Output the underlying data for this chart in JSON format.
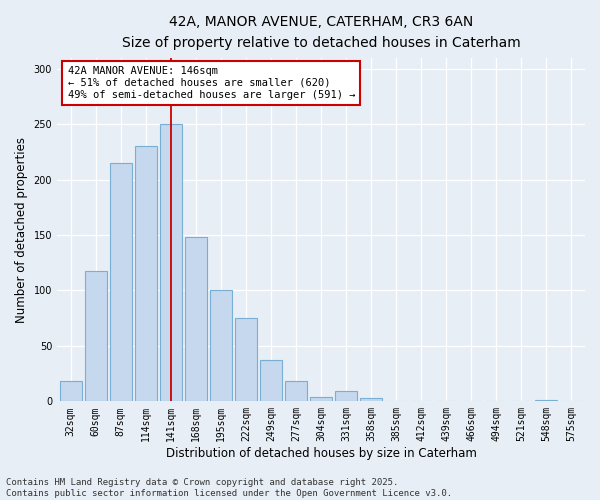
{
  "title_line1": "42A, MANOR AVENUE, CATERHAM, CR3 6AN",
  "title_line2": "Size of property relative to detached houses in Caterham",
  "xlabel": "Distribution of detached houses by size in Caterham",
  "ylabel": "Number of detached properties",
  "categories": [
    "32sqm",
    "60sqm",
    "87sqm",
    "114sqm",
    "141sqm",
    "168sqm",
    "195sqm",
    "222sqm",
    "249sqm",
    "277sqm",
    "304sqm",
    "331sqm",
    "358sqm",
    "385sqm",
    "412sqm",
    "439sqm",
    "466sqm",
    "494sqm",
    "521sqm",
    "548sqm",
    "575sqm"
  ],
  "values": [
    18,
    118,
    215,
    230,
    250,
    148,
    100,
    75,
    37,
    18,
    4,
    9,
    3,
    0,
    0,
    0,
    0,
    0,
    0,
    1,
    0
  ],
  "bar_color": "#c5d8ee",
  "bar_edge_color": "#7aafd4",
  "annotation_text": "42A MANOR AVENUE: 146sqm\n← 51% of detached houses are smaller (620)\n49% of semi-detached houses are larger (591) →",
  "annotation_box_color": "#ffffff",
  "annotation_box_edge": "#cc0000",
  "vline_x_index": 4,
  "vline_color": "#cc0000",
  "ylim": [
    0,
    310
  ],
  "yticks": [
    0,
    50,
    100,
    150,
    200,
    250,
    300
  ],
  "footer_line1": "Contains HM Land Registry data © Crown copyright and database right 2025.",
  "footer_line2": "Contains public sector information licensed under the Open Government Licence v3.0.",
  "bg_color": "#e8eef5",
  "plot_bg_color": "#e8eef5",
  "grid_color": "#ffffff",
  "title_fontsize": 10,
  "subtitle_fontsize": 9,
  "axis_label_fontsize": 8.5,
  "tick_fontsize": 7,
  "annot_fontsize": 7.5,
  "footer_fontsize": 6.5
}
